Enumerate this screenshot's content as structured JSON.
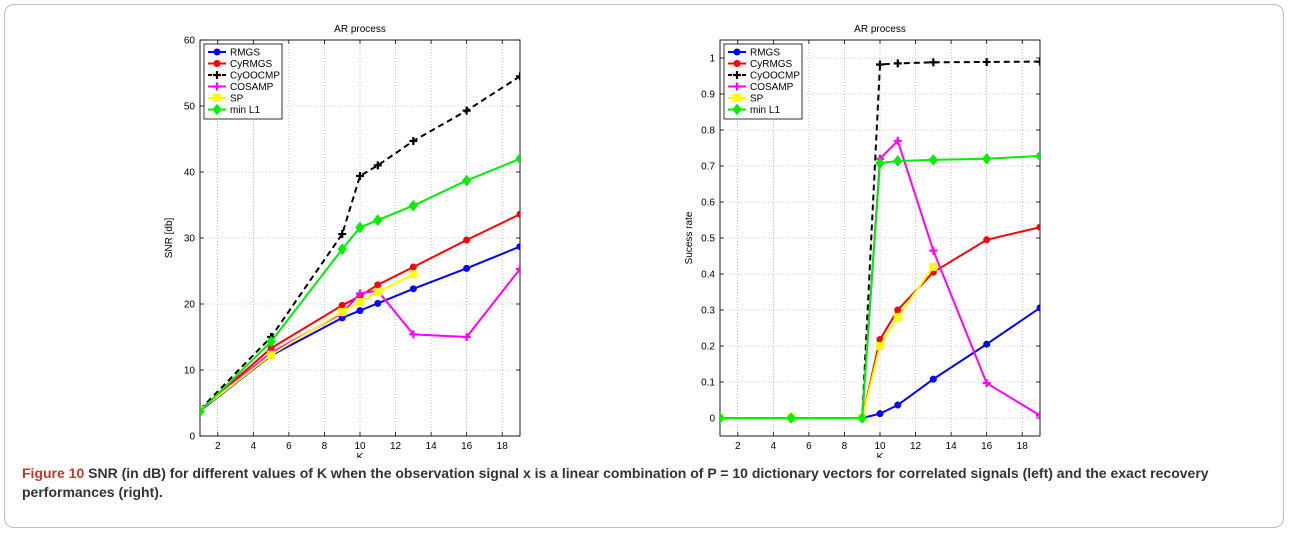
{
  "figure": {
    "label": "Figure 10",
    "caption": "SNR (in dB) for different values of K when the observation signal x is a linear combination of P = 10 dictionary vectors for correlated signals (left) and the exact recovery performances (right)."
  },
  "chart_data": [
    {
      "type": "line",
      "title": "AR process",
      "xlabel": "K",
      "ylabel": "SNR [db]",
      "xlim": [
        1,
        19
      ],
      "ylim": [
        0,
        60
      ],
      "xticks": [
        2,
        4,
        6,
        8,
        10,
        12,
        14,
        16,
        18
      ],
      "yticks": [
        0,
        10,
        20,
        30,
        40,
        50,
        60
      ],
      "grid": true,
      "legend_position": "top-left",
      "series": [
        {
          "name": "RMGS",
          "color": "#0000ff",
          "dash": "solid",
          "marker": "dot",
          "x": [
            1,
            5,
            9,
            10,
            11,
            13,
            16,
            19
          ],
          "y": [
            3.8,
            12.2,
            17.9,
            19.0,
            20.1,
            22.3,
            25.4,
            28.7
          ]
        },
        {
          "name": "CyRMGS",
          "color": "#ff0000",
          "dash": "solid",
          "marker": "dot",
          "x": [
            1,
            5,
            9,
            10,
            11,
            13,
            16,
            19
          ],
          "y": [
            3.9,
            13.3,
            19.8,
            21.2,
            22.9,
            25.6,
            29.7,
            33.6
          ]
        },
        {
          "name": "CyOOCMP",
          "color": "#000000",
          "dash": "dashed",
          "marker": "plus",
          "x": [
            1,
            5,
            9,
            10,
            11,
            13,
            16,
            19
          ],
          "y": [
            4.0,
            15.0,
            30.6,
            39.4,
            41.0,
            44.7,
            49.3,
            54.5
          ]
        },
        {
          "name": "COSAMP",
          "color": "#ff00ff",
          "dash": "solid",
          "marker": "plus",
          "x": [
            1,
            5,
            9,
            10,
            11,
            13,
            16,
            19
          ],
          "y": [
            4.0,
            12.6,
            18.6,
            21.6,
            22.0,
            15.4,
            15.0,
            25.3
          ]
        },
        {
          "name": "SP",
          "color": "#ffff00",
          "dash": "solid",
          "marker": "square",
          "x": [
            1,
            5,
            9,
            10,
            11,
            13
          ],
          "y": [
            3.9,
            12.3,
            18.8,
            20.3,
            21.8,
            24.5
          ]
        },
        {
          "name": "min L1",
          "color": "#00ee00",
          "dash": "solid",
          "marker": "diamond",
          "x": [
            1,
            5,
            9,
            10,
            11,
            13,
            16,
            19
          ],
          "y": [
            3.7,
            14.3,
            28.3,
            31.6,
            32.7,
            34.9,
            38.7,
            42.0
          ]
        }
      ]
    },
    {
      "type": "line",
      "title": "AR process",
      "xlabel": "K",
      "ylabel": "Sucess rate",
      "xlim": [
        1,
        19
      ],
      "ylim": [
        -0.05,
        1.05
      ],
      "xticks": [
        2,
        4,
        6,
        8,
        10,
        12,
        14,
        16,
        18
      ],
      "yticks": [
        0,
        0.1,
        0.2,
        0.3,
        0.4,
        0.5,
        0.6,
        0.7,
        0.8,
        0.9,
        1
      ],
      "grid": true,
      "legend_position": "top-left",
      "series": [
        {
          "name": "RMGS",
          "color": "#0000ff",
          "dash": "solid",
          "marker": "dot",
          "x": [
            1,
            5,
            9,
            10,
            11,
            13,
            16,
            19
          ],
          "y": [
            0,
            0,
            0,
            0.012,
            0.036,
            0.108,
            0.205,
            0.306
          ]
        },
        {
          "name": "CyRMGS",
          "color": "#ff0000",
          "dash": "solid",
          "marker": "dot",
          "x": [
            1,
            5,
            9,
            10,
            11,
            13,
            16,
            19
          ],
          "y": [
            0,
            0,
            0,
            0.218,
            0.3,
            0.405,
            0.495,
            0.53
          ]
        },
        {
          "name": "CyOOCMP",
          "color": "#000000",
          "dash": "dashed",
          "marker": "plus",
          "x": [
            1,
            5,
            9,
            10,
            11,
            13,
            16,
            19
          ],
          "y": [
            0,
            0,
            0,
            0.982,
            0.985,
            0.988,
            0.989,
            0.99
          ]
        },
        {
          "name": "COSAMP",
          "color": "#ff00ff",
          "dash": "solid",
          "marker": "plus",
          "x": [
            1,
            5,
            9,
            10,
            11,
            13,
            16,
            19
          ],
          "y": [
            0,
            0,
            0,
            0.72,
            0.77,
            0.465,
            0.097,
            0.007
          ]
        },
        {
          "name": "SP",
          "color": "#ffff00",
          "dash": "solid",
          "marker": "square",
          "x": [
            1,
            5,
            9,
            10,
            11,
            13
          ],
          "y": [
            0,
            0,
            0,
            0.2,
            0.28,
            0.42
          ]
        },
        {
          "name": "min L1",
          "color": "#00ee00",
          "dash": "solid",
          "marker": "diamond",
          "x": [
            1,
            5,
            9,
            10,
            11,
            13,
            16,
            19
          ],
          "y": [
            0,
            0,
            0,
            0.708,
            0.714,
            0.717,
            0.72,
            0.728
          ]
        }
      ]
    }
  ]
}
